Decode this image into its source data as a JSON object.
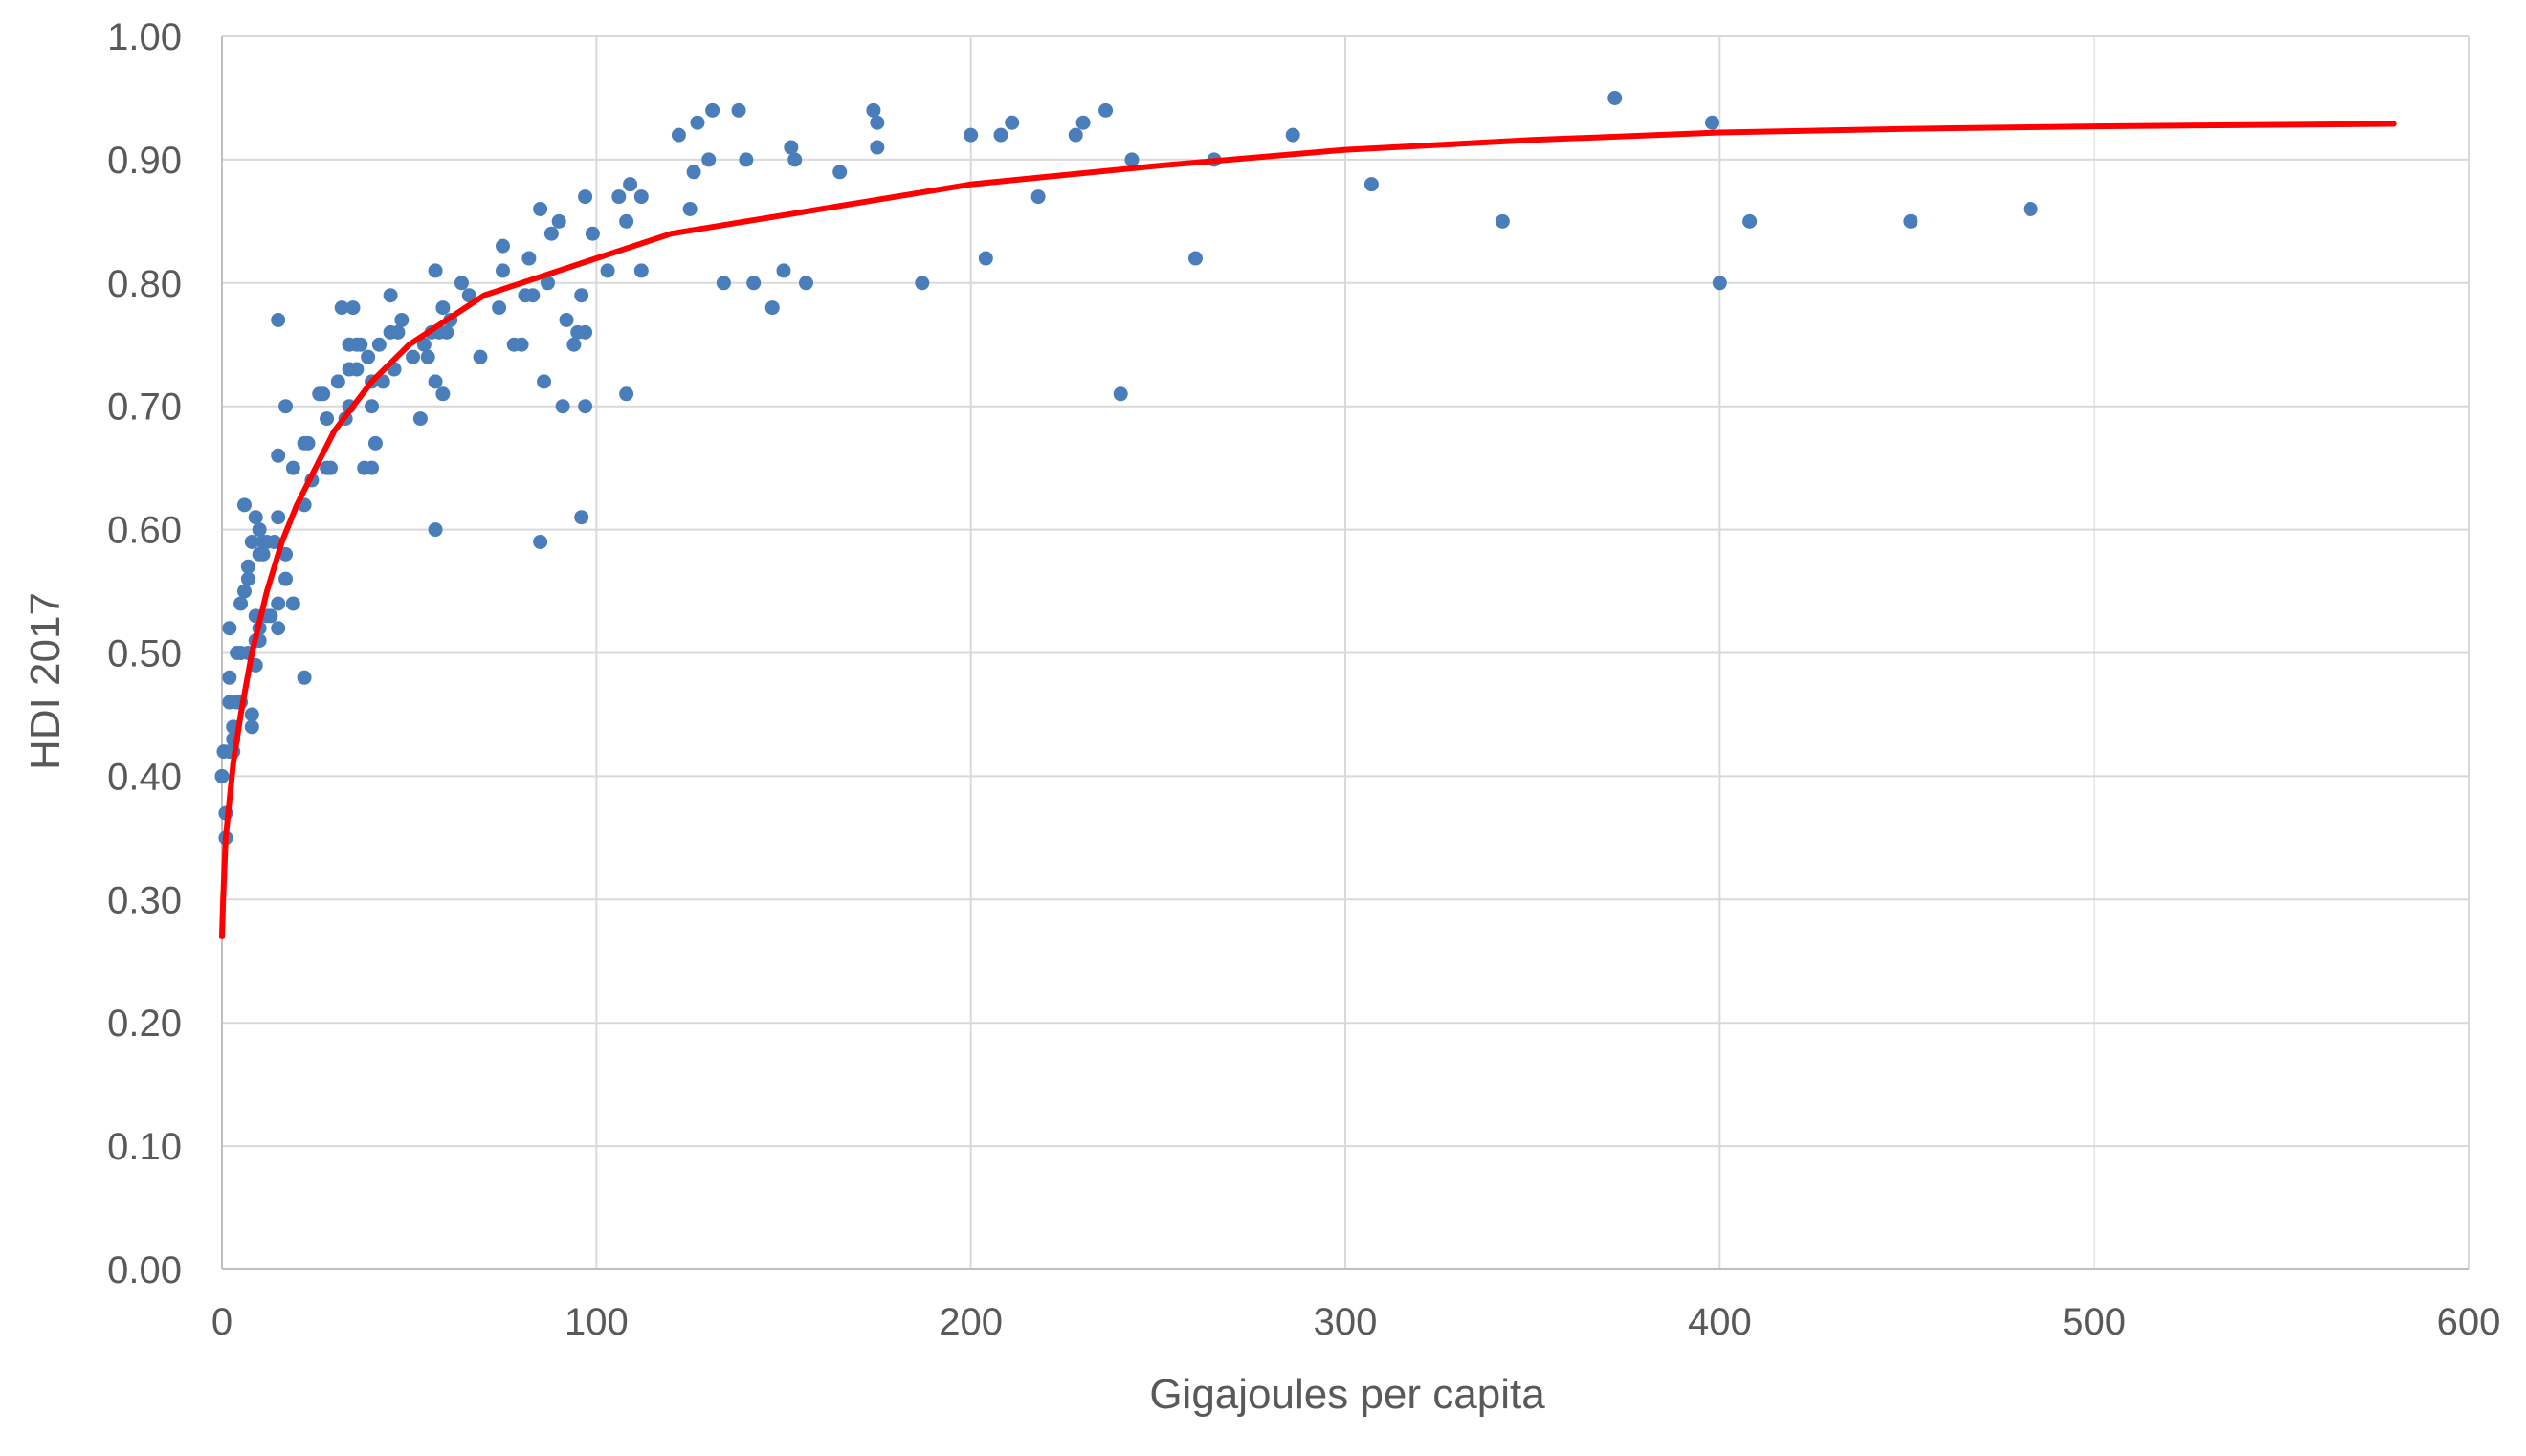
{
  "chart_data": {
    "type": "scatter",
    "title": "",
    "xlabel": "Gigajoules per capita",
    "ylabel": "HDI 2017",
    "xlim": [
      0,
      600
    ],
    "ylim": [
      0,
      1
    ],
    "x_ticks": [
      0,
      100,
      200,
      300,
      400,
      500,
      600
    ],
    "x_tick_labels": [
      "0",
      "100",
      "200",
      "300",
      "400",
      "500",
      "600"
    ],
    "y_ticks": [
      0,
      0.1,
      0.2,
      0.3,
      0.4,
      0.5,
      0.6,
      0.7,
      0.8,
      0.9,
      1.0
    ],
    "y_tick_labels": [
      "0.00",
      "0.10",
      "0.20",
      "0.30",
      "0.40",
      "0.50",
      "0.60",
      "0.70",
      "0.80",
      "0.90",
      "1.00"
    ],
    "grid": true,
    "legend": "none",
    "colors": {
      "points": "#4a7ebb",
      "trendline": "#ff0000",
      "grid": "#d9d9d9",
      "text": "#595959"
    },
    "trendline": {
      "type": "logistic-like fit",
      "color": "#ff0000",
      "points": [
        [
          0,
          0.27
        ],
        [
          0.3,
          0.3
        ],
        [
          1,
          0.35
        ],
        [
          2,
          0.38
        ],
        [
          3,
          0.41
        ],
        [
          5,
          0.45
        ],
        [
          8,
          0.5
        ],
        [
          12,
          0.55
        ],
        [
          16,
          0.59
        ],
        [
          20,
          0.62
        ],
        [
          25,
          0.65
        ],
        [
          30,
          0.68
        ],
        [
          40,
          0.72
        ],
        [
          50,
          0.75
        ],
        [
          60,
          0.77
        ],
        [
          70,
          0.79
        ],
        [
          80,
          0.8
        ],
        [
          100,
          0.82
        ],
        [
          120,
          0.84
        ],
        [
          150,
          0.855
        ],
        [
          200,
          0.88
        ],
        [
          250,
          0.895
        ],
        [
          300,
          0.908
        ],
        [
          350,
          0.916
        ],
        [
          400,
          0.922
        ],
        [
          450,
          0.925
        ],
        [
          500,
          0.927
        ],
        [
          580,
          0.929
        ]
      ]
    },
    "series": [
      {
        "points": [
          [
            0,
            0.4
          ],
          [
            0.5,
            0.42
          ],
          [
            1,
            0.37
          ],
          [
            1,
            0.35
          ],
          [
            2,
            0.42
          ],
          [
            2,
            0.46
          ],
          [
            2,
            0.52
          ],
          [
            2,
            0.48
          ],
          [
            3,
            0.43
          ],
          [
            3,
            0.44
          ],
          [
            3,
            0.42
          ],
          [
            4,
            0.46
          ],
          [
            4,
            0.5
          ],
          [
            5,
            0.54
          ],
          [
            5,
            0.5
          ],
          [
            5,
            0.46
          ],
          [
            6,
            0.62
          ],
          [
            6,
            0.55
          ],
          [
            7,
            0.57
          ],
          [
            7,
            0.56
          ],
          [
            7,
            0.5
          ],
          [
            8,
            0.44
          ],
          [
            8,
            0.45
          ],
          [
            8,
            0.59
          ],
          [
            9,
            0.53
          ],
          [
            9,
            0.51
          ],
          [
            9,
            0.49
          ],
          [
            9,
            0.61
          ],
          [
            10,
            0.6
          ],
          [
            10,
            0.58
          ],
          [
            10,
            0.52
          ],
          [
            10,
            0.51
          ],
          [
            11,
            0.59
          ],
          [
            11,
            0.58
          ],
          [
            12,
            0.59
          ],
          [
            12,
            0.53
          ],
          [
            13,
            0.53
          ],
          [
            14,
            0.59
          ],
          [
            15,
            0.61
          ],
          [
            15,
            0.54
          ],
          [
            15,
            0.52
          ],
          [
            15,
            0.66
          ],
          [
            15,
            0.77
          ],
          [
            17,
            0.7
          ],
          [
            17,
            0.56
          ],
          [
            17,
            0.58
          ],
          [
            19,
            0.65
          ],
          [
            19,
            0.54
          ],
          [
            22,
            0.62
          ],
          [
            22,
            0.48
          ],
          [
            22,
            0.67
          ],
          [
            23,
            0.67
          ],
          [
            24,
            0.64
          ],
          [
            26,
            0.71
          ],
          [
            27,
            0.71
          ],
          [
            28,
            0.65
          ],
          [
            28,
            0.69
          ],
          [
            29,
            0.65
          ],
          [
            31,
            0.72
          ],
          [
            32,
            0.78
          ],
          [
            33,
            0.69
          ],
          [
            34,
            0.7
          ],
          [
            34,
            0.73
          ],
          [
            34,
            0.75
          ],
          [
            35,
            0.78
          ],
          [
            36,
            0.75
          ],
          [
            36,
            0.73
          ],
          [
            37,
            0.75
          ],
          [
            38,
            0.65
          ],
          [
            39,
            0.74
          ],
          [
            40,
            0.7
          ],
          [
            40,
            0.72
          ],
          [
            40,
            0.65
          ],
          [
            41,
            0.67
          ],
          [
            42,
            0.75
          ],
          [
            43,
            0.72
          ],
          [
            45,
            0.79
          ],
          [
            45,
            0.76
          ],
          [
            46,
            0.73
          ],
          [
            47,
            0.76
          ],
          [
            48,
            0.77
          ],
          [
            51,
            0.74
          ],
          [
            53,
            0.69
          ],
          [
            54,
            0.75
          ],
          [
            55,
            0.74
          ],
          [
            56,
            0.76
          ],
          [
            57,
            0.81
          ],
          [
            57,
            0.72
          ],
          [
            57,
            0.6
          ],
          [
            58,
            0.76
          ],
          [
            59,
            0.78
          ],
          [
            59,
            0.71
          ],
          [
            60,
            0.76
          ],
          [
            61,
            0.77
          ],
          [
            64,
            0.8
          ],
          [
            66,
            0.79
          ],
          [
            69,
            0.74
          ],
          [
            74,
            0.78
          ],
          [
            75,
            0.81
          ],
          [
            75,
            0.83
          ],
          [
            78,
            0.75
          ],
          [
            80,
            0.75
          ],
          [
            81,
            0.79
          ],
          [
            82,
            0.82
          ],
          [
            83,
            0.79
          ],
          [
            85,
            0.86
          ],
          [
            85,
            0.59
          ],
          [
            86,
            0.72
          ],
          [
            87,
            0.8
          ],
          [
            88,
            0.84
          ],
          [
            90,
            0.85
          ],
          [
            91,
            0.7
          ],
          [
            92,
            0.77
          ],
          [
            94,
            0.75
          ],
          [
            95,
            0.76
          ],
          [
            96,
            0.79
          ],
          [
            96,
            0.61
          ],
          [
            97,
            0.87
          ],
          [
            97,
            0.76
          ],
          [
            97,
            0.7
          ],
          [
            99,
            0.84
          ],
          [
            103,
            0.81
          ],
          [
            106,
            0.87
          ],
          [
            108,
            0.85
          ],
          [
            108,
            0.71
          ],
          [
            109,
            0.88
          ],
          [
            112,
            0.87
          ],
          [
            112,
            0.81
          ],
          [
            122,
            0.92
          ],
          [
            125,
            0.86
          ],
          [
            126,
            0.89
          ],
          [
            127,
            0.93
          ],
          [
            130,
            0.9
          ],
          [
            131,
            0.94
          ],
          [
            134,
            0.8
          ],
          [
            138,
            0.94
          ],
          [
            140,
            0.9
          ],
          [
            142,
            0.8
          ],
          [
            147,
            0.78
          ],
          [
            150,
            0.81
          ],
          [
            152,
            0.91
          ],
          [
            153,
            0.9
          ],
          [
            156,
            0.8
          ],
          [
            165,
            0.89
          ],
          [
            174,
            0.94
          ],
          [
            175,
            0.93
          ],
          [
            175,
            0.91
          ],
          [
            187,
            0.8
          ],
          [
            200,
            0.92
          ],
          [
            204,
            0.82
          ],
          [
            208,
            0.92
          ],
          [
            211,
            0.93
          ],
          [
            218,
            0.87
          ],
          [
            228,
            0.92
          ],
          [
            230,
            0.93
          ],
          [
            236,
            0.94
          ],
          [
            240,
            0.71
          ],
          [
            243,
            0.9
          ],
          [
            260,
            0.82
          ],
          [
            265,
            0.9
          ],
          [
            286,
            0.92
          ],
          [
            307,
            0.88
          ],
          [
            342,
            0.85
          ],
          [
            372,
            0.95
          ],
          [
            398,
            0.93
          ],
          [
            400,
            0.8
          ],
          [
            408,
            0.85
          ],
          [
            451,
            0.85
          ],
          [
            483,
            0.86
          ]
        ]
      }
    ]
  }
}
